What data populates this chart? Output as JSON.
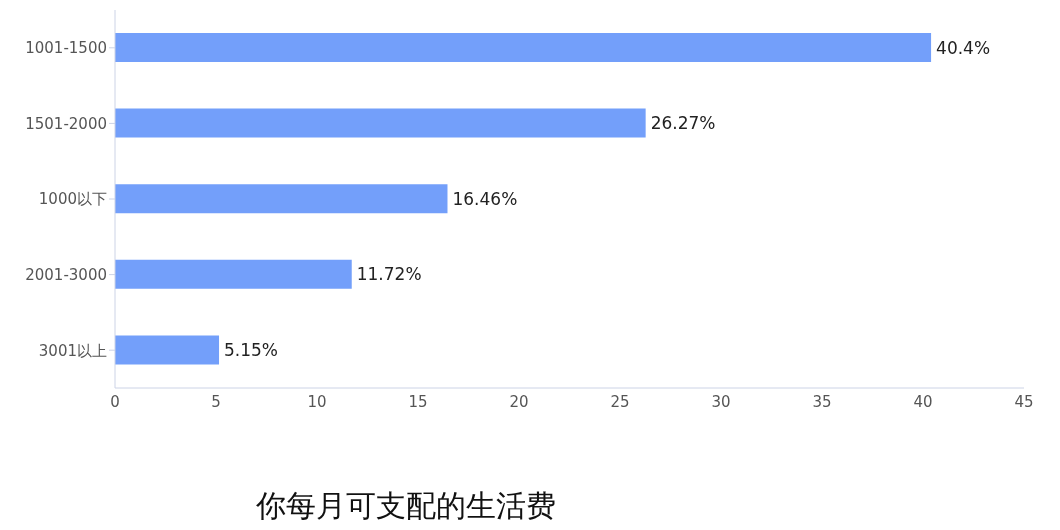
{
  "chart_data": {
    "type": "bar",
    "orientation": "horizontal",
    "title": "你每月可支配的生活费",
    "categories": [
      "1001-1500",
      "1501-2000",
      "1000以下",
      "2001-3000",
      "3001以上"
    ],
    "values": [
      40.4,
      26.27,
      16.46,
      11.72,
      5.15
    ],
    "value_labels": [
      "40.4%",
      "26.27%",
      "16.46%",
      "11.72%",
      "5.15%"
    ],
    "color": "#739ffa",
    "xlim": [
      0,
      45
    ],
    "xticks": [
      0,
      5,
      10,
      15,
      20,
      25,
      30,
      35,
      40,
      45
    ]
  }
}
